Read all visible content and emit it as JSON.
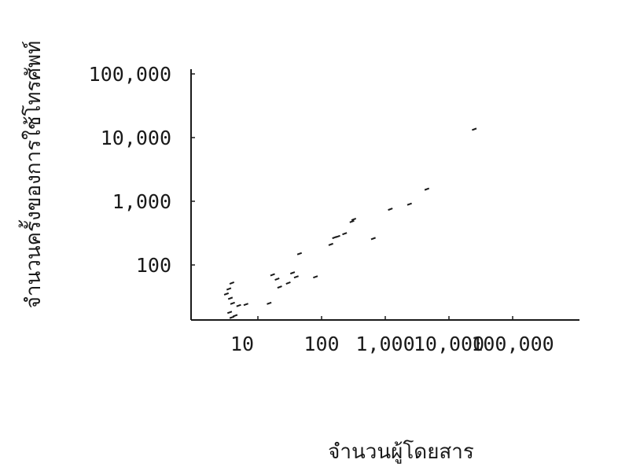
{
  "chart_data": {
    "type": "scatter",
    "title": "",
    "xlabel": "จำนวนผู้โดยสาร",
    "ylabel": "จำนวนครั้งของการใช้โทรศัพท์",
    "xscale": "log",
    "yscale": "log",
    "xlim": [
      2,
      200000
    ],
    "ylim": [
      12,
      150000
    ],
    "grid": false,
    "legend": "none",
    "x_ticks": [
      {
        "value": 10,
        "label": "10"
      },
      {
        "value": 100,
        "label": "100"
      },
      {
        "value": 1000,
        "label": "1,000"
      },
      {
        "value": 10000,
        "label": "10,000"
      },
      {
        "value": 100000,
        "label": "100,000"
      }
    ],
    "y_ticks": [
      {
        "value": 100,
        "label": "100"
      },
      {
        "value": 1000,
        "label": "1,000"
      },
      {
        "value": 10000,
        "label": "10,000"
      },
      {
        "value": 100000,
        "label": "100,000"
      }
    ],
    "points": [
      {
        "x": 3.2,
        "y": 35
      },
      {
        "x": 3.5,
        "y": 42
      },
      {
        "x": 3.9,
        "y": 52
      },
      {
        "x": 3.7,
        "y": 30
      },
      {
        "x": 4.0,
        "y": 25
      },
      {
        "x": 3.6,
        "y": 18
      },
      {
        "x": 3.9,
        "y": 15
      },
      {
        "x": 4.4,
        "y": 16
      },
      {
        "x": 5.0,
        "y": 23
      },
      {
        "x": 6.5,
        "y": 24
      },
      {
        "x": 15,
        "y": 25
      },
      {
        "x": 17,
        "y": 70
      },
      {
        "x": 20,
        "y": 60
      },
      {
        "x": 22,
        "y": 45
      },
      {
        "x": 30,
        "y": 52
      },
      {
        "x": 35,
        "y": 75
      },
      {
        "x": 40,
        "y": 65
      },
      {
        "x": 45,
        "y": 150
      },
      {
        "x": 80,
        "y": 65
      },
      {
        "x": 140,
        "y": 210
      },
      {
        "x": 160,
        "y": 270
      },
      {
        "x": 180,
        "y": 280
      },
      {
        "x": 230,
        "y": 310
      },
      {
        "x": 300,
        "y": 480
      },
      {
        "x": 320,
        "y": 520
      },
      {
        "x": 650,
        "y": 260
      },
      {
        "x": 1200,
        "y": 750
      },
      {
        "x": 2400,
        "y": 900
      },
      {
        "x": 4500,
        "y": 1550
      },
      {
        "x": 25000,
        "y": 13500
      }
    ]
  }
}
